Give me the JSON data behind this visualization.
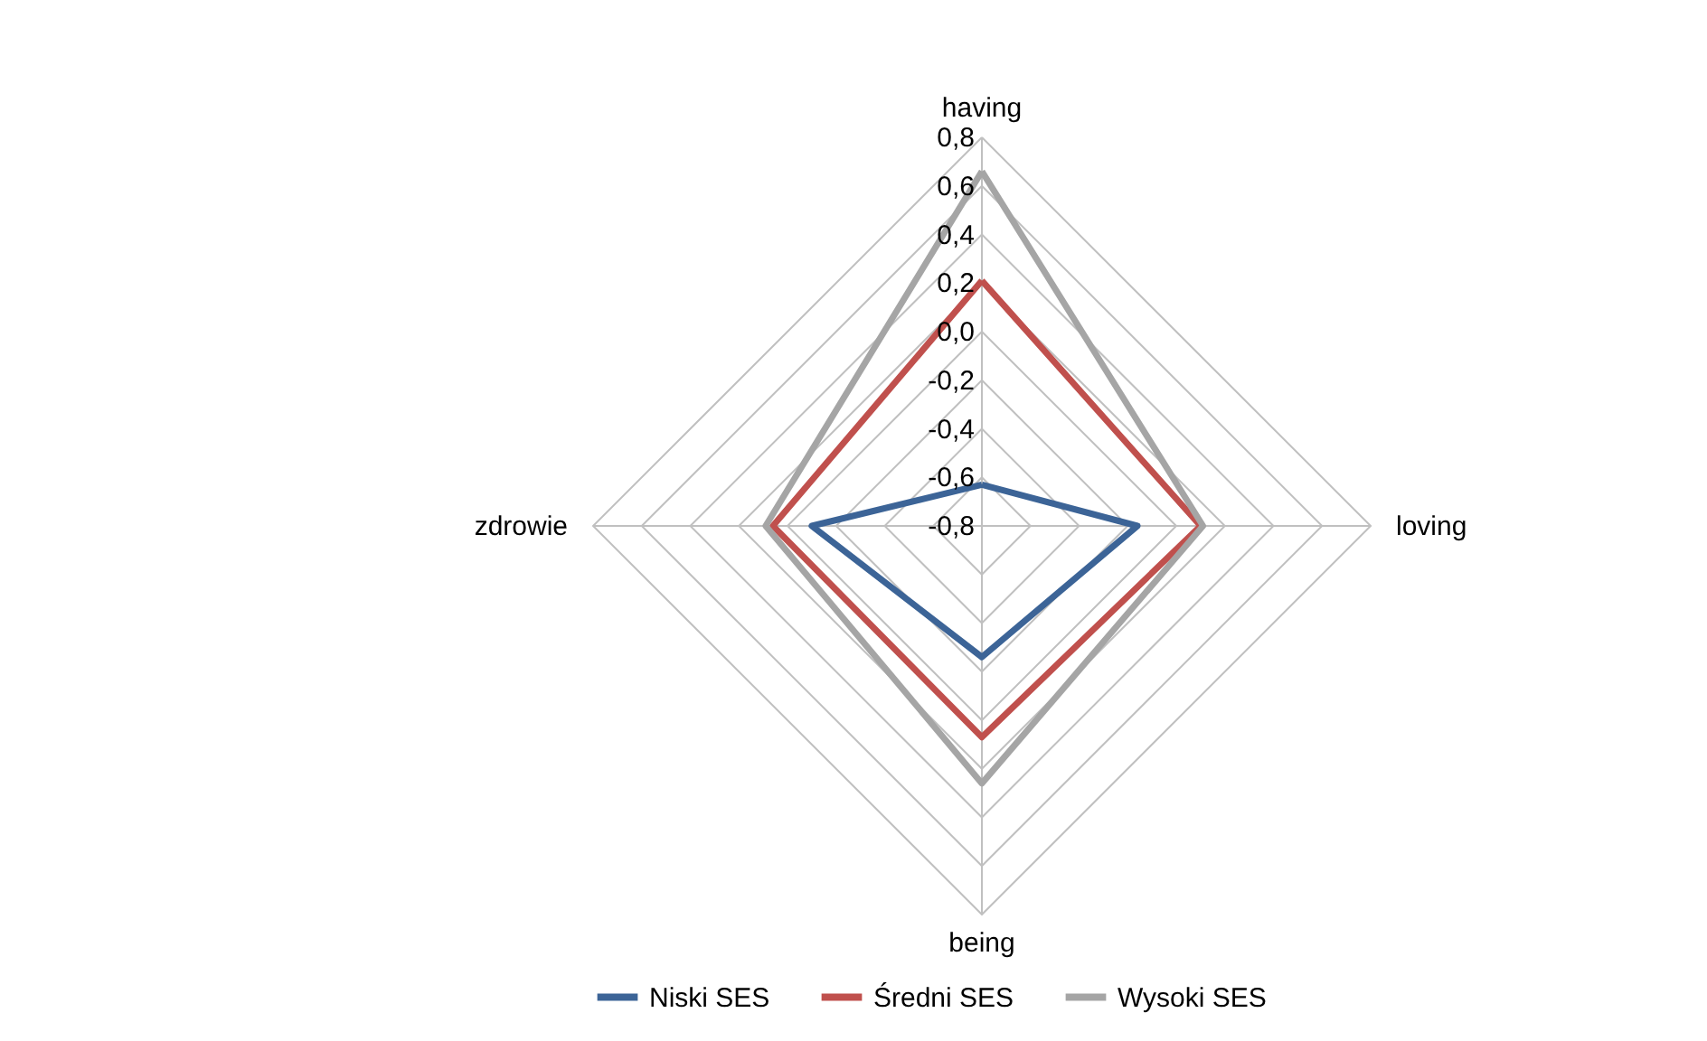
{
  "chart_data": {
    "type": "radar",
    "categories": [
      "having",
      "loving",
      "being",
      "zdrowie"
    ],
    "series": [
      {
        "name": "Niski SES",
        "color": "#3c6497",
        "values": [
          -0.63,
          -0.16,
          -0.26,
          -0.1
        ]
      },
      {
        "name": "Średni SES",
        "color": "#c0504d",
        "values": [
          0.21,
          0.1,
          0.07,
          0.06
        ]
      },
      {
        "name": "Wysoki SES",
        "color": "#a5a5a5",
        "values": [
          0.66,
          0.11,
          0.26,
          0.09
        ]
      }
    ],
    "ylim": [
      -0.8,
      0.8
    ],
    "yticks": [
      {
        "value": -0.8,
        "label": "-0,8"
      },
      {
        "value": -0.6,
        "label": "-0,6"
      },
      {
        "value": -0.4,
        "label": "-0,4"
      },
      {
        "value": -0.2,
        "label": "-0,2"
      },
      {
        "value": 0.0,
        "label": "0,0"
      },
      {
        "value": 0.2,
        "label": "0,2"
      },
      {
        "value": 0.4,
        "label": "0,4"
      },
      {
        "value": 0.6,
        "label": "0,6"
      },
      {
        "value": 0.8,
        "label": "0,8"
      }
    ],
    "grid": true,
    "legend": "bottom"
  }
}
